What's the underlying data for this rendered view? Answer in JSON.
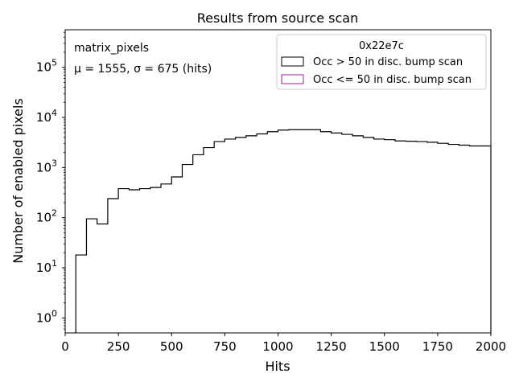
{
  "chart_data": {
    "type": "histogram",
    "title": "Results from source scan",
    "xlabel": "Hits",
    "ylabel": "Number of enabled pixels",
    "yscale": "log",
    "xlim": [
      0,
      2000
    ],
    "ylim_log10": [
      -0.3,
      5.75
    ],
    "x_ticks": [
      0,
      250,
      500,
      750,
      1000,
      1250,
      1500,
      1750,
      2000
    ],
    "x_tick_labels": [
      "0",
      "250",
      "500",
      "750",
      "1000",
      "1250",
      "1500",
      "1750",
      "2000"
    ],
    "y_ticks_exp": [
      0,
      1,
      2,
      3,
      4,
      5
    ],
    "y_tick_base": "10",
    "annotation_line1": "matrix_pixels",
    "annotation_line2": "μ = 1555, σ = 675 (hits)",
    "legend": {
      "title": "0x22e7c",
      "entries": [
        {
          "label": "Occ > 50 in disc. bump scan",
          "color": "#000000"
        },
        {
          "label": "Occ <= 50 in disc. bump scan",
          "color": "#9b1d9b"
        }
      ]
    },
    "series": [
      {
        "name": "Occ > 50 in disc. bump scan",
        "color": "#000000",
        "bin_width": 50,
        "bin_starts": [
          50,
          100,
          150,
          200,
          250,
          300,
          350,
          400,
          450,
          500,
          550,
          600,
          650,
          700,
          750,
          800,
          850,
          900,
          950,
          1000,
          1050,
          1100,
          1150,
          1200,
          1250,
          1300,
          1350,
          1400,
          1450,
          1500,
          1550,
          1600,
          1650,
          1700,
          1750,
          1800,
          1850,
          1900,
          1950
        ],
        "counts": [
          18,
          95,
          75,
          240,
          380,
          360,
          380,
          400,
          470,
          650,
          1150,
          1800,
          2500,
          3300,
          3700,
          4000,
          4300,
          4700,
          5200,
          5600,
          5700,
          5700,
          5700,
          5200,
          4900,
          4600,
          4300,
          4000,
          3700,
          3600,
          3400,
          3350,
          3300,
          3200,
          3050,
          2900,
          2800,
          2700,
          2700
        ]
      }
    ]
  }
}
